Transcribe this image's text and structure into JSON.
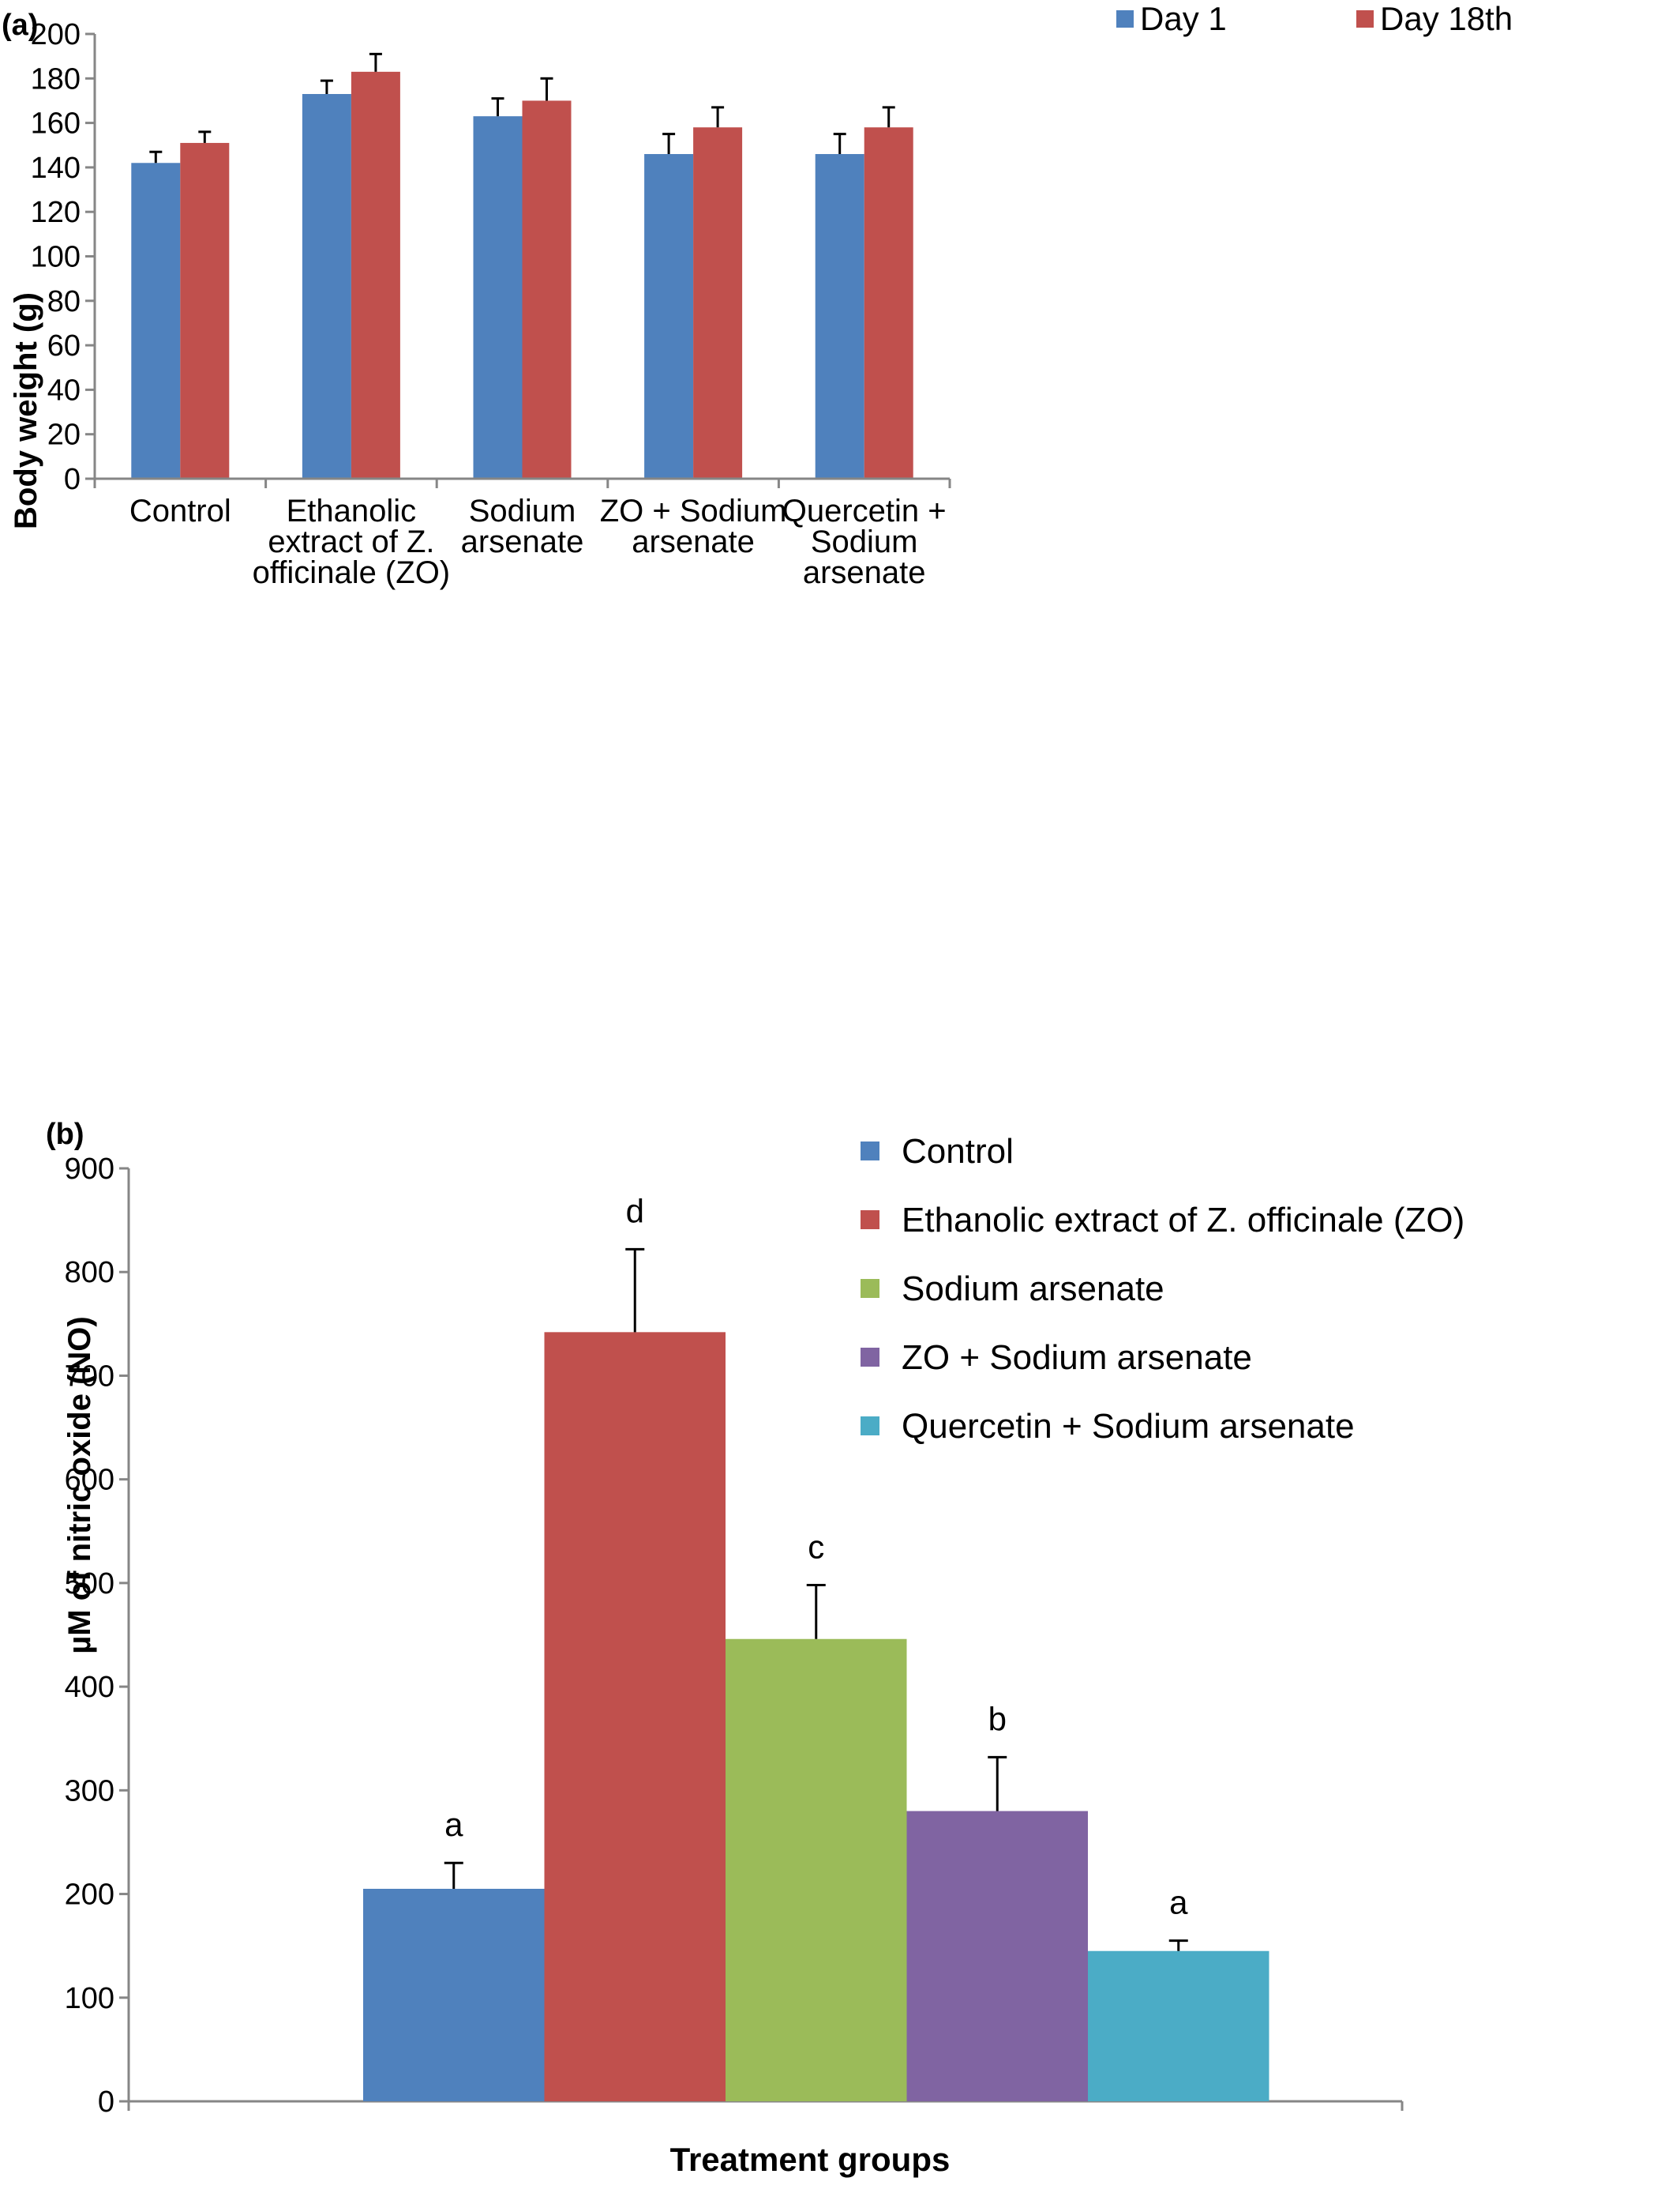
{
  "chart_data": [
    {
      "panel_label": "(a)",
      "type": "bar",
      "title": "",
      "xlabel": "",
      "ylabel": "Body weight (g)",
      "ylim": [
        0,
        200
      ],
      "yticks": [
        "0",
        "20",
        "40",
        "60",
        "80",
        "100",
        "120",
        "140",
        "160",
        "180",
        "200"
      ],
      "categories": [
        [
          "Control"
        ],
        [
          "Ethanolic",
          "extract of Z.",
          "officinale (ZO)"
        ],
        [
          "Sodium",
          "arsenate"
        ],
        [
          "ZO + Sodium",
          "arsenate"
        ],
        [
          "Quercetin +",
          "Sodium",
          "arsenate"
        ]
      ],
      "series": [
        {
          "name": "Day 1",
          "color": "#4F81BD",
          "values": [
            142,
            173,
            163,
            146,
            146
          ],
          "errors": [
            5,
            6,
            8,
            9,
            9
          ]
        },
        {
          "name": "Day 18th",
          "color": "#C0504D",
          "values": [
            151,
            183,
            170,
            158,
            158
          ],
          "errors": [
            5,
            8,
            10,
            9,
            9
          ]
        }
      ],
      "grid": false,
      "legend": "top-right"
    },
    {
      "panel_label": "(b)",
      "type": "bar",
      "title": "",
      "xlabel": "Treatment groups",
      "ylabel": "µM of nitric oxide (NO)",
      "ylim": [
        0,
        900
      ],
      "yticks": [
        "0",
        "100",
        "200",
        "300",
        "400",
        "500",
        "600",
        "700",
        "800",
        "900"
      ],
      "series": [
        {
          "name": "Control",
          "color": "#4F81BD",
          "value": 205,
          "error": 25,
          "letter": "a"
        },
        {
          "name": "Ethanolic extract of Z. officinale (ZO)",
          "color": "#C0504D",
          "value": 742,
          "error": 80,
          "letter": "d"
        },
        {
          "name": "Sodium arsenate",
          "color": "#9BBB59",
          "value": 446,
          "error": 52,
          "letter": "c"
        },
        {
          "name": "ZO + Sodium arsenate",
          "color": "#8064A2",
          "value": 280,
          "error": 52,
          "letter": "b"
        },
        {
          "name": "Quercetin + Sodium arsenate",
          "color": "#4BACC6",
          "value": 145,
          "error": 10,
          "letter": "a"
        }
      ],
      "grid": false,
      "legend": "top-right"
    }
  ]
}
